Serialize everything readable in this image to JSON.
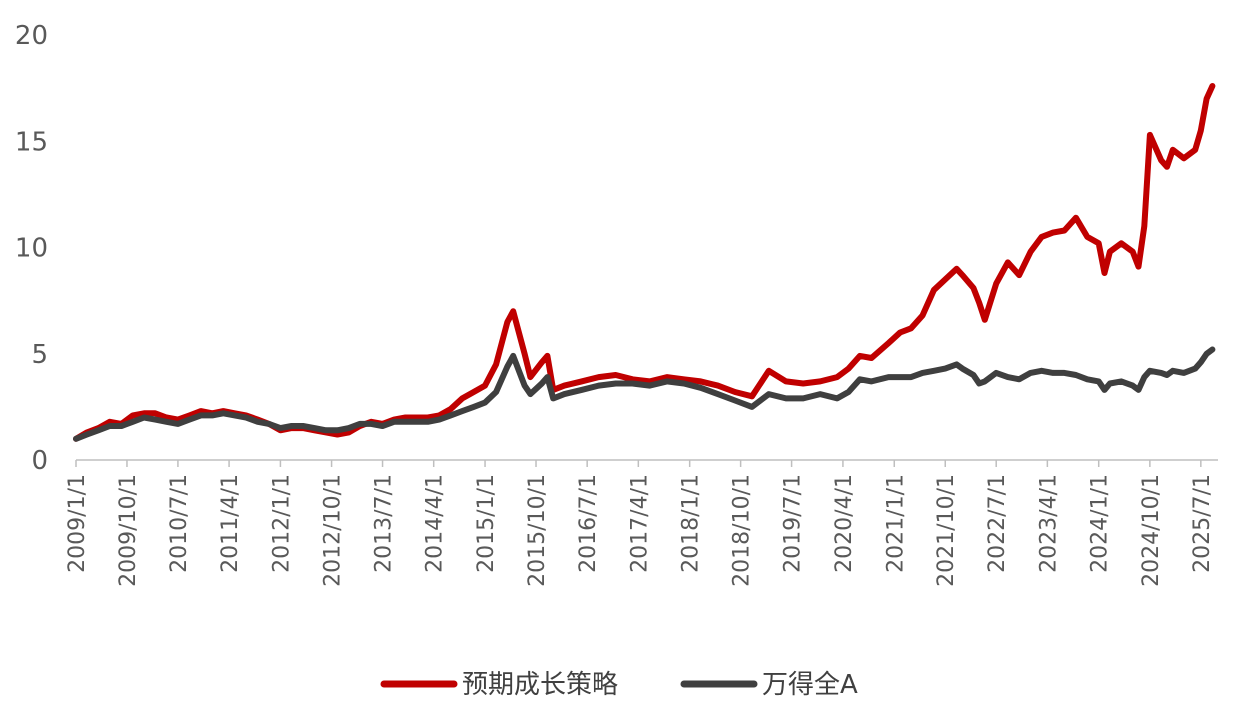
{
  "chart_data": {
    "type": "line",
    "title": "",
    "xlabel": "",
    "ylabel": "",
    "ylim": [
      0,
      20
    ],
    "yticks": [
      "0",
      "5",
      "10",
      "15",
      "20"
    ],
    "x_tick_labels": [
      "2009/1/1",
      "2009/10/1",
      "2010/7/1",
      "2011/4/1",
      "2012/1/1",
      "2012/10/1",
      "2013/7/1",
      "2014/4/1",
      "2015/1/1",
      "2015/10/1",
      "2016/7/1",
      "2017/4/1",
      "2018/1/1",
      "2018/10/1",
      "2019/7/1",
      "2020/4/1",
      "2021/1/1",
      "2021/10/1",
      "2022/7/1",
      "2023/4/1",
      "2024/1/1",
      "2024/10/1",
      "2025/7/1"
    ],
    "x_range": [
      "2009/1/1",
      "2025/10/1"
    ],
    "legend_position": "bottom",
    "grid": false,
    "series": [
      {
        "name": "预期成长策略",
        "color": "#C00000",
        "points": [
          [
            "2009/1/1",
            1.0
          ],
          [
            "2009/3/1",
            1.3
          ],
          [
            "2009/5/1",
            1.5
          ],
          [
            "2009/7/1",
            1.8
          ],
          [
            "2009/9/1",
            1.7
          ],
          [
            "2009/11/1",
            2.1
          ],
          [
            "2010/1/1",
            2.2
          ],
          [
            "2010/3/1",
            2.2
          ],
          [
            "2010/5/1",
            2.0
          ],
          [
            "2010/7/1",
            1.9
          ],
          [
            "2010/9/1",
            2.1
          ],
          [
            "2010/11/1",
            2.3
          ],
          [
            "2011/1/1",
            2.2
          ],
          [
            "2011/3/1",
            2.3
          ],
          [
            "2011/5/1",
            2.2
          ],
          [
            "2011/7/1",
            2.1
          ],
          [
            "2011/9/1",
            1.9
          ],
          [
            "2011/11/1",
            1.7
          ],
          [
            "2012/1/1",
            1.4
          ],
          [
            "2012/3/1",
            1.5
          ],
          [
            "2012/5/1",
            1.5
          ],
          [
            "2012/7/1",
            1.4
          ],
          [
            "2012/9/1",
            1.3
          ],
          [
            "2012/11/1",
            1.2
          ],
          [
            "2013/1/1",
            1.3
          ],
          [
            "2013/3/1",
            1.6
          ],
          [
            "2013/5/1",
            1.8
          ],
          [
            "2013/7/1",
            1.7
          ],
          [
            "2013/9/1",
            1.9
          ],
          [
            "2013/11/1",
            2.0
          ],
          [
            "2014/1/1",
            2.0
          ],
          [
            "2014/3/1",
            2.0
          ],
          [
            "2014/5/1",
            2.1
          ],
          [
            "2014/7/1",
            2.4
          ],
          [
            "2014/9/1",
            2.9
          ],
          [
            "2014/11/1",
            3.2
          ],
          [
            "2015/1/1",
            3.5
          ],
          [
            "2015/3/1",
            4.5
          ],
          [
            "2015/5/1",
            6.5
          ],
          [
            "2015/6/1",
            7.0
          ],
          [
            "2015/8/1",
            5.0
          ],
          [
            "2015/9/1",
            3.9
          ],
          [
            "2015/11/1",
            4.6
          ],
          [
            "2015/12/1",
            4.9
          ],
          [
            "2016/1/1",
            3.3
          ],
          [
            "2016/3/1",
            3.5
          ],
          [
            "2016/6/1",
            3.7
          ],
          [
            "2016/9/1",
            3.9
          ],
          [
            "2016/12/1",
            4.0
          ],
          [
            "2017/3/1",
            3.8
          ],
          [
            "2017/6/1",
            3.7
          ],
          [
            "2017/9/1",
            3.9
          ],
          [
            "2017/12/1",
            3.8
          ],
          [
            "2018/3/1",
            3.7
          ],
          [
            "2018/6/1",
            3.5
          ],
          [
            "2018/9/1",
            3.2
          ],
          [
            "2018/12/1",
            3.0
          ],
          [
            "2019/3/1",
            4.2
          ],
          [
            "2019/6/1",
            3.7
          ],
          [
            "2019/9/1",
            3.6
          ],
          [
            "2019/12/1",
            3.7
          ],
          [
            "2020/3/1",
            3.9
          ],
          [
            "2020/5/1",
            4.3
          ],
          [
            "2020/7/1",
            4.9
          ],
          [
            "2020/9/1",
            4.8
          ],
          [
            "2020/12/1",
            5.5
          ],
          [
            "2021/2/1",
            6.0
          ],
          [
            "2021/4/1",
            6.2
          ],
          [
            "2021/6/1",
            6.8
          ],
          [
            "2021/8/1",
            8.0
          ],
          [
            "2021/10/1",
            8.5
          ],
          [
            "2021/12/1",
            9.0
          ],
          [
            "2022/1/1",
            8.7
          ],
          [
            "2022/3/1",
            8.1
          ],
          [
            "2022/4/1",
            7.4
          ],
          [
            "2022/5/1",
            6.6
          ],
          [
            "2022/7/1",
            8.3
          ],
          [
            "2022/9/1",
            9.3
          ],
          [
            "2022/11/1",
            8.7
          ],
          [
            "2023/1/1",
            9.8
          ],
          [
            "2023/3/1",
            10.5
          ],
          [
            "2023/5/1",
            10.7
          ],
          [
            "2023/7/1",
            10.8
          ],
          [
            "2023/9/1",
            11.4
          ],
          [
            "2023/11/1",
            10.5
          ],
          [
            "2024/1/1",
            10.2
          ],
          [
            "2024/2/1",
            8.8
          ],
          [
            "2024/3/1",
            9.8
          ],
          [
            "2024/5/1",
            10.2
          ],
          [
            "2024/7/1",
            9.8
          ],
          [
            "2024/8/1",
            9.1
          ],
          [
            "2024/9/1",
            11.0
          ],
          [
            "2024/10/1",
            15.3
          ],
          [
            "2024/12/1",
            14.1
          ],
          [
            "2025/1/1",
            13.8
          ],
          [
            "2025/2/1",
            14.6
          ],
          [
            "2025/4/1",
            14.2
          ],
          [
            "2025/6/1",
            14.6
          ],
          [
            "2025/7/1",
            15.5
          ],
          [
            "2025/8/1",
            17.0
          ],
          [
            "2025/9/1",
            17.6
          ]
        ]
      },
      {
        "name": "万得全A",
        "color": "#3F3F3F",
        "points": [
          [
            "2009/1/1",
            1.0
          ],
          [
            "2009/3/1",
            1.2
          ],
          [
            "2009/5/1",
            1.4
          ],
          [
            "2009/7/1",
            1.6
          ],
          [
            "2009/9/1",
            1.6
          ],
          [
            "2009/11/1",
            1.8
          ],
          [
            "2010/1/1",
            2.0
          ],
          [
            "2010/3/1",
            1.9
          ],
          [
            "2010/5/1",
            1.8
          ],
          [
            "2010/7/1",
            1.7
          ],
          [
            "2010/9/1",
            1.9
          ],
          [
            "2010/11/1",
            2.1
          ],
          [
            "2011/1/1",
            2.1
          ],
          [
            "2011/3/1",
            2.2
          ],
          [
            "2011/5/1",
            2.1
          ],
          [
            "2011/7/1",
            2.0
          ],
          [
            "2011/9/1",
            1.8
          ],
          [
            "2011/11/1",
            1.7
          ],
          [
            "2012/1/1",
            1.5
          ],
          [
            "2012/3/1",
            1.6
          ],
          [
            "2012/5/1",
            1.6
          ],
          [
            "2012/7/1",
            1.5
          ],
          [
            "2012/9/1",
            1.4
          ],
          [
            "2012/11/1",
            1.4
          ],
          [
            "2013/1/1",
            1.5
          ],
          [
            "2013/3/1",
            1.7
          ],
          [
            "2013/5/1",
            1.7
          ],
          [
            "2013/7/1",
            1.6
          ],
          [
            "2013/9/1",
            1.8
          ],
          [
            "2013/11/1",
            1.8
          ],
          [
            "2014/1/1",
            1.8
          ],
          [
            "2014/3/1",
            1.8
          ],
          [
            "2014/5/1",
            1.9
          ],
          [
            "2014/7/1",
            2.1
          ],
          [
            "2014/9/1",
            2.3
          ],
          [
            "2014/11/1",
            2.5
          ],
          [
            "2015/1/1",
            2.7
          ],
          [
            "2015/3/1",
            3.2
          ],
          [
            "2015/5/1",
            4.4
          ],
          [
            "2015/6/1",
            4.9
          ],
          [
            "2015/8/1",
            3.5
          ],
          [
            "2015/9/1",
            3.1
          ],
          [
            "2015/11/1",
            3.6
          ],
          [
            "2015/12/1",
            3.9
          ],
          [
            "2016/1/1",
            2.9
          ],
          [
            "2016/3/1",
            3.1
          ],
          [
            "2016/6/1",
            3.3
          ],
          [
            "2016/9/1",
            3.5
          ],
          [
            "2016/12/1",
            3.6
          ],
          [
            "2017/3/1",
            3.6
          ],
          [
            "2017/6/1",
            3.5
          ],
          [
            "2017/9/1",
            3.7
          ],
          [
            "2017/12/1",
            3.6
          ],
          [
            "2018/3/1",
            3.4
          ],
          [
            "2018/6/1",
            3.1
          ],
          [
            "2018/9/1",
            2.8
          ],
          [
            "2018/12/1",
            2.5
          ],
          [
            "2019/3/1",
            3.1
          ],
          [
            "2019/6/1",
            2.9
          ],
          [
            "2019/9/1",
            2.9
          ],
          [
            "2019/12/1",
            3.1
          ],
          [
            "2020/3/1",
            2.9
          ],
          [
            "2020/5/1",
            3.2
          ],
          [
            "2020/7/1",
            3.8
          ],
          [
            "2020/9/1",
            3.7
          ],
          [
            "2020/12/1",
            3.9
          ],
          [
            "2021/2/1",
            3.9
          ],
          [
            "2021/4/1",
            3.9
          ],
          [
            "2021/6/1",
            4.1
          ],
          [
            "2021/8/1",
            4.2
          ],
          [
            "2021/10/1",
            4.3
          ],
          [
            "2021/12/1",
            4.5
          ],
          [
            "2022/1/1",
            4.3
          ],
          [
            "2022/3/1",
            4.0
          ],
          [
            "2022/4/1",
            3.6
          ],
          [
            "2022/5/1",
            3.7
          ],
          [
            "2022/7/1",
            4.1
          ],
          [
            "2022/9/1",
            3.9
          ],
          [
            "2022/11/1",
            3.8
          ],
          [
            "2023/1/1",
            4.1
          ],
          [
            "2023/3/1",
            4.2
          ],
          [
            "2023/5/1",
            4.1
          ],
          [
            "2023/7/1",
            4.1
          ],
          [
            "2023/9/1",
            4.0
          ],
          [
            "2023/11/1",
            3.8
          ],
          [
            "2024/1/1",
            3.7
          ],
          [
            "2024/2/1",
            3.3
          ],
          [
            "2024/3/1",
            3.6
          ],
          [
            "2024/5/1",
            3.7
          ],
          [
            "2024/7/1",
            3.5
          ],
          [
            "2024/8/1",
            3.3
          ],
          [
            "2024/9/1",
            3.9
          ],
          [
            "2024/10/1",
            4.2
          ],
          [
            "2024/12/1",
            4.1
          ],
          [
            "2025/1/1",
            4.0
          ],
          [
            "2025/2/1",
            4.2
          ],
          [
            "2025/4/1",
            4.1
          ],
          [
            "2025/6/1",
            4.3
          ],
          [
            "2025/7/1",
            4.6
          ],
          [
            "2025/8/1",
            5.0
          ],
          [
            "2025/9/1",
            5.2
          ]
        ]
      }
    ]
  }
}
